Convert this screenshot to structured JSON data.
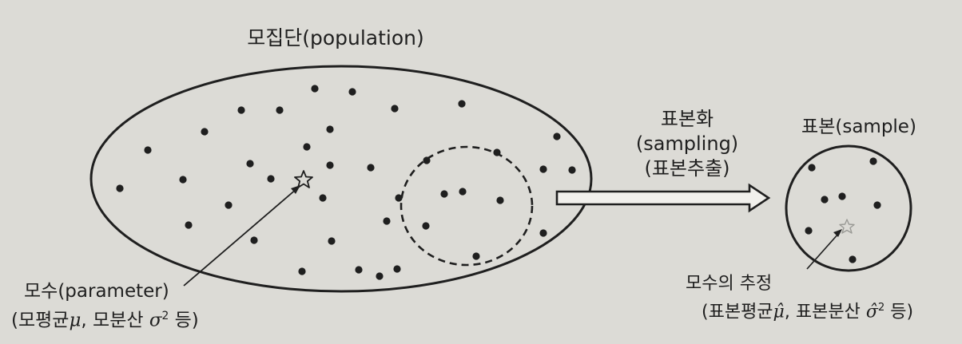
{
  "population": {
    "label": "모집단(population)"
  },
  "sampling": {
    "line1": "표본화",
    "line2": "(sampling)",
    "line3": "(표본추출)"
  },
  "sample": {
    "label": "표본(sample)"
  },
  "parameter": {
    "line1": "모수(parameter)",
    "line2_prefix": "(모평균",
    "mu": "μ",
    "line2_mid": ", 모분산 ",
    "sigma": "σ",
    "power": "2",
    "line2_suffix": " 등)"
  },
  "estimate": {
    "line1": "모수의 추정",
    "line2_prefix": "(표본평균",
    "mu_hat": "μ̂",
    "line2_mid": ", 표본분산 ",
    "sigma_hat": "σ̂",
    "power": "2",
    "line2_suffix": " 등)"
  },
  "colors": {
    "ink": "#1f1f1f",
    "paper": "#dcdbd6",
    "star_faded": "#9a9a96"
  }
}
